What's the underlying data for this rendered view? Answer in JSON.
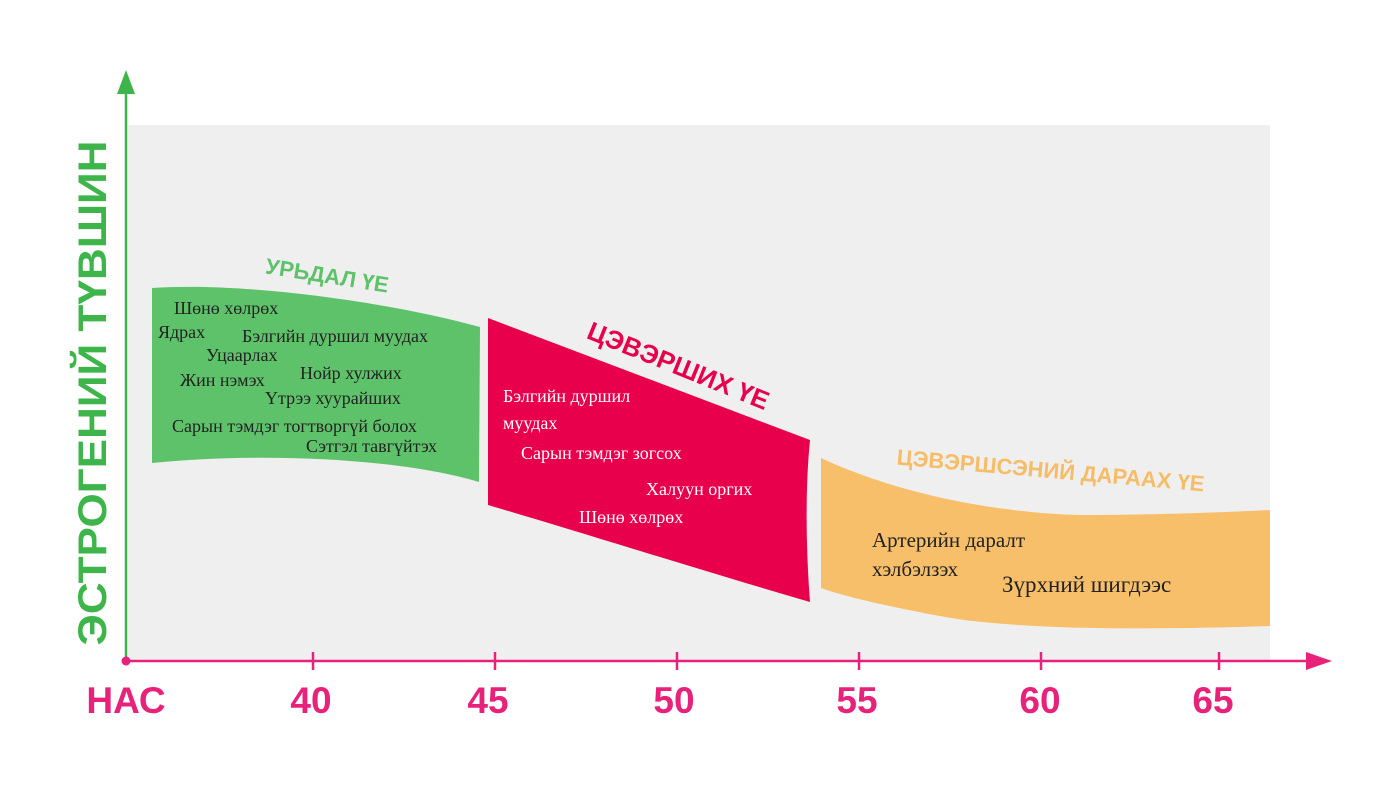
{
  "y_axis": {
    "label": "ЭСТРОГЕНИЙ ТҮВШИН",
    "color": "#3db54a"
  },
  "x_axis": {
    "label": "НАС",
    "color": "#e8217a",
    "ticks": [
      "40",
      "45",
      "50",
      "55",
      "60",
      "65"
    ]
  },
  "panel_background": "#efefef",
  "phases": [
    {
      "title": "УРЬДАЛ ҮЕ",
      "title_color": "#5ec26a",
      "fill": "#5ec26a",
      "text_color": "#222222",
      "symptoms": [
        "Шөнө хөлрөх",
        "Ядрах",
        "Бэлгийн дуршил муудах",
        "Уцаарлах",
        "Нойр хулжих",
        "Жин нэмэх",
        "Үтрээ хуурайших",
        "Сарын тэмдэг тогтворгүй болох",
        "Сэтгэл тавгүйтэх"
      ]
    },
    {
      "title": "ЦЭВЭРШИХ ҮЕ",
      "title_color": "#e8004c",
      "fill": "#e8004c",
      "text_color": "#ffffff",
      "symptoms": [
        "Бэлгийн дуршил",
        "муудах",
        "Сарын тэмдэг зогсох",
        "Халуун оргих",
        "Шөнө хөлрөх"
      ]
    },
    {
      "title": "ЦЭВЭРШСЭНИЙ ДАРААХ ҮЕ",
      "title_color": "#f7bc66",
      "fill": "#f7bf69",
      "text_color": "#222222",
      "symptoms": [
        "Артерийн даралт",
        "хэлбэлзэх",
        "Зүрхний шигдээс"
      ]
    }
  ]
}
